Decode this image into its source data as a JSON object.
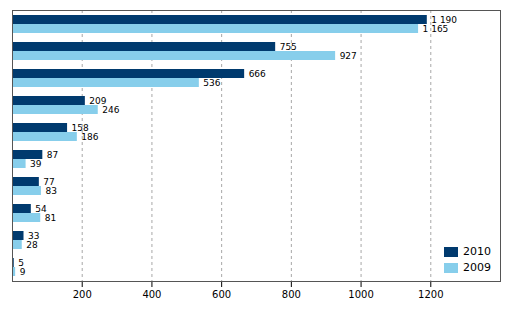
{
  "chart_data": {
    "type": "bar",
    "orientation": "horizontal",
    "categories": [
      null,
      null,
      null,
      null,
      null,
      null,
      null,
      null,
      null,
      null
    ],
    "series": [
      {
        "name": "2010",
        "color": "#003a6e",
        "values": [
          1190,
          755,
          666,
          209,
          158,
          87,
          77,
          54,
          33,
          5
        ],
        "value_labels": [
          "1 190",
          "755",
          "666",
          "209",
          "158",
          "87",
          "77",
          "54",
          "33",
          "5"
        ]
      },
      {
        "name": "2009",
        "color": "#87ceeb",
        "values": [
          1165,
          927,
          536,
          246,
          186,
          39,
          83,
          81,
          28,
          9
        ],
        "value_labels": [
          "1 165",
          "927",
          "536",
          "246",
          "186",
          "39",
          "83",
          "81",
          "28",
          "9"
        ]
      }
    ],
    "xlim": [
      0,
      1400
    ],
    "xticks": [
      200,
      400,
      600,
      800,
      1000,
      1200
    ],
    "grid": true,
    "legend": "lower right",
    "data_labels": true,
    "tick_labels": "x"
  }
}
